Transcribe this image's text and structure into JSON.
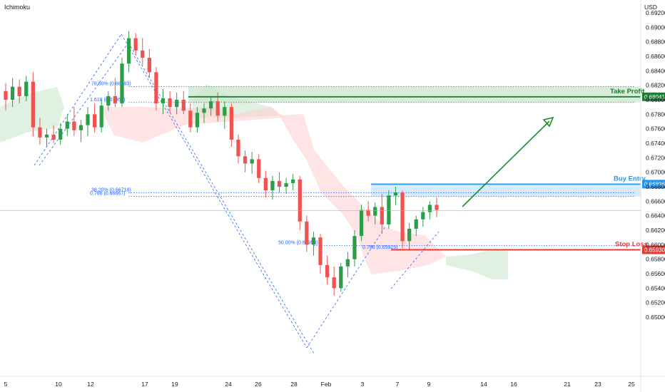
{
  "indicator_label": "Ichimoku",
  "currency_label": "USD",
  "colors": {
    "up": "#26a69a",
    "up_body": "#2e9d4a",
    "down": "#ef5350",
    "cloud_bull": "#c8e6c9",
    "cloud_bear": "#ffcdd2",
    "take_profit": "#1e7b34",
    "buy_entry": "#2196f3",
    "stop_loss": "#e53935",
    "fib": "#2962ff",
    "arrow": "#1e8a2c"
  },
  "chart_data": {
    "type": "candlestick",
    "y_ticks": [
      "0.69200",
      "0.69000",
      "0.68800",
      "0.68600",
      "0.68400",
      "0.68200",
      "0.68000",
      "0.67800",
      "0.67600",
      "0.67400",
      "0.67200",
      "0.67000",
      "0.66800",
      "0.66600",
      "0.66400",
      "0.66200",
      "0.66000",
      "0.65800",
      "0.65600",
      "0.65400",
      "0.65200",
      "0.65000"
    ],
    "ylim": [
      0.6495,
      0.6925
    ],
    "x_ticks": [
      "5",
      "10",
      "12",
      "17",
      "19",
      "24",
      "26",
      "28",
      "Feb",
      "3",
      "7",
      "9",
      "14",
      "16",
      "21",
      "23",
      "25"
    ],
    "levels": [
      {
        "name": "Take Profit",
        "value": 0.68041,
        "tag": "0.68041",
        "zone": [
          0.67963,
          0.68183
        ]
      },
      {
        "name": "Buy Entry",
        "value": 0.66836,
        "tag": "0.66836",
        "zone": [
          0.66667,
          0.66836
        ]
      },
      {
        "name": "Stop Loss",
        "value": 0.6593,
        "tag": "0.65930"
      }
    ],
    "fib_labels": [
      {
        "text": "78.60% (0.68183)",
        "value": 0.68183
      },
      {
        "text": "1.618 (0.67963)",
        "value": 0.67963
      },
      {
        "text": "38.20% (0.66718)",
        "value": 0.66718
      },
      {
        "text": "0.786 (0.66667)",
        "value": 0.66667
      },
      {
        "text": "50.00% (0.65990)",
        "value": 0.6599
      },
      {
        "text": "0.786 (0.65925)",
        "value": 0.65925
      }
    ],
    "current_price": 0.6647,
    "candles": [
      [
        0.6812,
        0.6823,
        0.6785,
        0.68
      ],
      [
        0.68,
        0.683,
        0.679,
        0.6818
      ],
      [
        0.6818,
        0.6828,
        0.6795,
        0.6805
      ],
      [
        0.6805,
        0.6833,
        0.6798,
        0.6825
      ],
      [
        0.6825,
        0.6838,
        0.675,
        0.6762
      ],
      [
        0.6762,
        0.6775,
        0.6738,
        0.6748
      ],
      [
        0.6748,
        0.676,
        0.6735,
        0.6752
      ],
      [
        0.6752,
        0.6765,
        0.674,
        0.6745
      ],
      [
        0.6745,
        0.6768,
        0.6738,
        0.676
      ],
      [
        0.676,
        0.678,
        0.675,
        0.677
      ],
      [
        0.677,
        0.679,
        0.675,
        0.6758
      ],
      [
        0.6758,
        0.6772,
        0.6742,
        0.6765
      ],
      [
        0.6765,
        0.679,
        0.675,
        0.678
      ],
      [
        0.678,
        0.6795,
        0.6755,
        0.6762
      ],
      [
        0.6762,
        0.68,
        0.6755,
        0.6792
      ],
      [
        0.6792,
        0.6812,
        0.6785,
        0.6805
      ],
      [
        0.6805,
        0.683,
        0.679,
        0.6795
      ],
      [
        0.6795,
        0.6858,
        0.679,
        0.685
      ],
      [
        0.685,
        0.6895,
        0.6838,
        0.6885
      ],
      [
        0.6885,
        0.6892,
        0.6862,
        0.6868
      ],
      [
        0.6868,
        0.6885,
        0.6848,
        0.6858
      ],
      [
        0.6858,
        0.687,
        0.683,
        0.6838
      ],
      [
        0.6838,
        0.6845,
        0.6785,
        0.6795
      ],
      [
        0.6795,
        0.6815,
        0.678,
        0.6802
      ],
      [
        0.6802,
        0.6812,
        0.6782,
        0.679
      ],
      [
        0.679,
        0.681,
        0.678,
        0.68
      ],
      [
        0.68,
        0.6812,
        0.678,
        0.6785
      ],
      [
        0.6785,
        0.6795,
        0.6755,
        0.6762
      ],
      [
        0.6762,
        0.679,
        0.6755,
        0.6782
      ],
      [
        0.6782,
        0.6795,
        0.6768,
        0.6788
      ],
      [
        0.6788,
        0.6805,
        0.6778,
        0.6798
      ],
      [
        0.6798,
        0.681,
        0.677,
        0.6778
      ],
      [
        0.6778,
        0.6798,
        0.676,
        0.679
      ],
      [
        0.679,
        0.6795,
        0.6735,
        0.6745
      ],
      [
        0.6745,
        0.6752,
        0.6712,
        0.6722
      ],
      [
        0.6722,
        0.673,
        0.67,
        0.6712
      ],
      [
        0.6712,
        0.6728,
        0.6698,
        0.6718
      ],
      [
        0.6718,
        0.6725,
        0.6685,
        0.6692
      ],
      [
        0.6692,
        0.6702,
        0.6665,
        0.6675
      ],
      [
        0.6675,
        0.6695,
        0.6662,
        0.6688
      ],
      [
        0.6688,
        0.67,
        0.6672,
        0.668
      ],
      [
        0.668,
        0.6692,
        0.667,
        0.6685
      ],
      [
        0.6685,
        0.6698,
        0.6675,
        0.669
      ],
      [
        0.669,
        0.6695,
        0.662,
        0.6632
      ],
      [
        0.6632,
        0.664,
        0.659,
        0.66
      ],
      [
        0.66,
        0.6618,
        0.6585,
        0.661
      ],
      [
        0.661,
        0.6615,
        0.656,
        0.6572
      ],
      [
        0.6572,
        0.6585,
        0.6545,
        0.6555
      ],
      [
        0.6555,
        0.657,
        0.653,
        0.654
      ],
      [
        0.654,
        0.6575,
        0.6535,
        0.657
      ],
      [
        0.657,
        0.659,
        0.6555,
        0.658
      ],
      [
        0.658,
        0.662,
        0.657,
        0.6612
      ],
      [
        0.6612,
        0.6655,
        0.6605,
        0.6648
      ],
      [
        0.6648,
        0.666,
        0.6632,
        0.664
      ],
      [
        0.664,
        0.6658,
        0.6628,
        0.6652
      ],
      [
        0.6652,
        0.667,
        0.6615,
        0.6628
      ],
      [
        0.6628,
        0.6675,
        0.6622,
        0.6668
      ],
      [
        0.6668,
        0.668,
        0.6655,
        0.6672
      ],
      [
        0.6672,
        0.6675,
        0.6595,
        0.6605
      ],
      [
        0.6605,
        0.663,
        0.6592,
        0.6622
      ],
      [
        0.6622,
        0.664,
        0.6612,
        0.6635
      ],
      [
        0.6635,
        0.6652,
        0.6625,
        0.6645
      ],
      [
        0.6645,
        0.666,
        0.6635,
        0.6655
      ],
      [
        0.6655,
        0.6665,
        0.6638,
        0.6648
      ]
    ]
  }
}
